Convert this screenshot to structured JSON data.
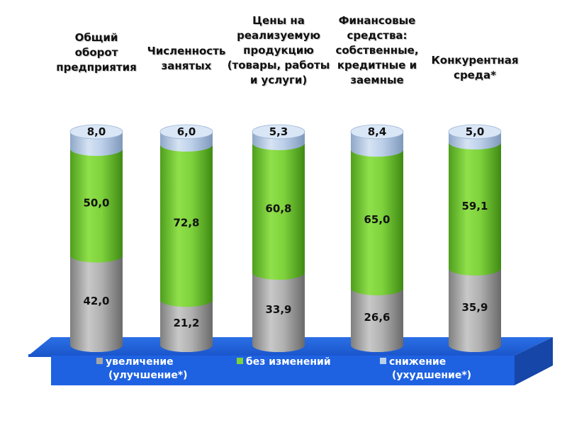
{
  "chart_data": {
    "type": "bar",
    "stacked": true,
    "style": "3d-cylinder",
    "categories": [
      "Общий\nоборот\nпредприятия",
      "Численность\nзанятых",
      "Цены на\nреализуемую\nпродукцию\n(товары, работы\nи услуги)",
      "Финансовые\nсредства:\nсобственные,\nкредитные и\nзаемные",
      "Конкурентная\nсреда*"
    ],
    "series": [
      {
        "name": "увеличение",
        "name_line2": "(улучшение*)",
        "color": "#a6a6a6",
        "values": [
          42.0,
          21.2,
          33.9,
          26.6,
          35.9
        ],
        "labels": [
          "42,0",
          "21,2",
          "33,9",
          "26,6",
          "35,9"
        ]
      },
      {
        "name": "без изменений",
        "name_line2": "",
        "color": "#7ed23c",
        "values": [
          50.0,
          72.8,
          60.8,
          65.0,
          59.1
        ],
        "labels": [
          "50,0",
          "72,8",
          "60,8",
          "65,0",
          "59,1"
        ]
      },
      {
        "name": "снижение",
        "name_line2": "(ухудшение*)",
        "color": "#bcd0ea",
        "values": [
          8.0,
          6.0,
          5.3,
          8.4,
          5.0
        ],
        "labels": [
          "8,0",
          "6,0",
          "5,3",
          "8,4",
          "5,0"
        ]
      }
    ],
    "ylim": [
      0,
      100
    ],
    "legend_position": "bottom",
    "floor_color": "#1f63e0"
  }
}
